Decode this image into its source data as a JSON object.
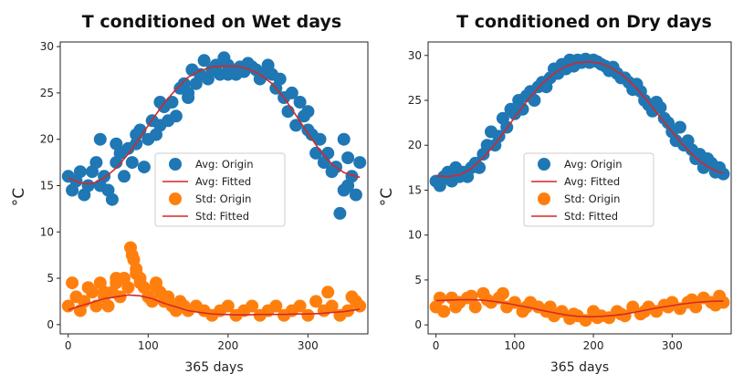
{
  "chart_data": [
    {
      "type": "scatter",
      "title": "T conditioned on Wet days",
      "xlabel": "365 days",
      "ylabel": "°C",
      "xlim": [
        -10,
        375
      ],
      "ylim": [
        -1,
        30.5
      ],
      "xticks": [
        0,
        100,
        200,
        300
      ],
      "yticks": [
        0,
        5,
        10,
        15,
        20,
        25,
        30
      ],
      "grid": false,
      "legend_position": "center",
      "series": [
        {
          "name": "Avg: Origin",
          "kind": "scatter",
          "color": "#1f77b4",
          "x": [
            0,
            5,
            10,
            15,
            20,
            25,
            30,
            35,
            40,
            45,
            50,
            55,
            60,
            65,
            70,
            75,
            80,
            85,
            90,
            95,
            100,
            105,
            110,
            115,
            120,
            125,
            130,
            135,
            140,
            145,
            150,
            155,
            160,
            165,
            170,
            175,
            180,
            185,
            190,
            195,
            200,
            205,
            210,
            215,
            220,
            225,
            230,
            235,
            240,
            245,
            250,
            255,
            260,
            265,
            270,
            275,
            280,
            285,
            290,
            295,
            300,
            305,
            310,
            315,
            320,
            325,
            330,
            335,
            340,
            345,
            350,
            355,
            360,
            365,
            40,
            60,
            85,
            115,
            150,
            200,
            250,
            300,
            345,
            350
          ],
          "y": [
            16,
            14.5,
            15.5,
            16.5,
            14,
            15,
            16.5,
            17.5,
            15,
            16,
            14.5,
            13.5,
            17.5,
            18.5,
            16,
            19,
            17.5,
            19.5,
            21,
            17,
            20,
            22,
            20.5,
            21.5,
            23.5,
            22,
            24,
            22.5,
            25.5,
            26,
            24.5,
            27.5,
            26,
            27,
            28.5,
            26.5,
            27.5,
            28,
            27,
            28.8,
            28,
            27.3,
            27,
            27.8,
            27.3,
            28.2,
            27.8,
            27.5,
            26.5,
            27,
            28,
            27,
            25.5,
            26.5,
            24.5,
            23,
            25,
            21.5,
            24,
            22.5,
            21,
            20.5,
            18.5,
            20,
            17.5,
            18.5,
            16.5,
            17,
            12,
            14.5,
            15,
            16,
            14,
            17.5,
            20,
            19.5,
            20.5,
            24,
            25,
            27,
            27.5,
            23,
            20,
            18
          ]
        },
        {
          "name": "Avg: Fitted",
          "kind": "line",
          "color": "#d62728",
          "x": [
            0,
            15,
            30,
            45,
            60,
            75,
            90,
            105,
            120,
            135,
            150,
            165,
            180,
            195,
            210,
            225,
            240,
            255,
            270,
            285,
            300,
            315,
            330,
            345,
            360,
            365
          ],
          "y": [
            15.8,
            15.3,
            15.2,
            15.8,
            16.9,
            18.4,
            20.2,
            22.1,
            23.9,
            25.4,
            26.7,
            27.4,
            27.8,
            27.9,
            27.9,
            27.6,
            27.0,
            26.0,
            24.5,
            22.6,
            20.6,
            18.8,
            17.3,
            16.4,
            16.0,
            15.9
          ]
        },
        {
          "name": "Std: Origin",
          "kind": "scatter",
          "color": "#ff7f0e",
          "x": [
            0,
            5,
            10,
            15,
            20,
            25,
            30,
            35,
            40,
            45,
            50,
            55,
            60,
            65,
            70,
            75,
            80,
            85,
            90,
            95,
            100,
            105,
            110,
            115,
            120,
            125,
            130,
            135,
            140,
            145,
            150,
            160,
            170,
            180,
            190,
            200,
            210,
            220,
            230,
            240,
            250,
            260,
            270,
            280,
            290,
            300,
            310,
            320,
            330,
            340,
            350,
            360,
            365,
            78,
            82,
            85,
            90,
            60,
            45,
            110,
            325,
            355
          ],
          "y": [
            2,
            4.5,
            3,
            1.5,
            2.5,
            4,
            3.5,
            2,
            4.5,
            3,
            2,
            3.5,
            4.5,
            3,
            5,
            4,
            7.5,
            6,
            5,
            4,
            3,
            2.5,
            4,
            3.5,
            2.5,
            3,
            2,
            1.5,
            2.5,
            2,
            1.5,
            2,
            1.5,
            1,
            1.5,
            2,
            1,
            1.5,
            2,
            1,
            1.5,
            2,
            1,
            1.5,
            2,
            1,
            2.5,
            1.5,
            2,
            1,
            1.5,
            2.5,
            2,
            8.3,
            7,
            5.5,
            4.5,
            5,
            3.5,
            4.5,
            3.5,
            3
          ]
        },
        {
          "name": "Std: Fitted",
          "kind": "line",
          "color": "#d62728",
          "x": [
            0,
            15,
            30,
            45,
            60,
            75,
            90,
            105,
            120,
            135,
            150,
            165,
            180,
            195,
            210,
            225,
            240,
            255,
            270,
            285,
            300,
            315,
            330,
            345,
            360,
            365
          ],
          "y": [
            1.6,
            2.0,
            2.4,
            2.8,
            3.0,
            3.2,
            3.1,
            2.8,
            2.3,
            1.9,
            1.5,
            1.3,
            1.15,
            1.1,
            1.05,
            1.05,
            1.1,
            1.1,
            1.1,
            1.15,
            1.15,
            1.2,
            1.3,
            1.4,
            1.6,
            1.65
          ]
        }
      ]
    },
    {
      "type": "scatter",
      "title": "T conditioned on Dry days",
      "xlabel": "365 days",
      "ylabel": "°C",
      "xlim": [
        -10,
        375
      ],
      "ylim": [
        -1,
        31.5
      ],
      "xticks": [
        0,
        100,
        200,
        300
      ],
      "yticks": [
        0,
        5,
        10,
        15,
        20,
        25,
        30
      ],
      "grid": false,
      "legend_position": "center",
      "series": [
        {
          "name": "Avg: Origin",
          "kind": "scatter",
          "color": "#1f77b4",
          "x": [
            0,
            5,
            10,
            15,
            20,
            25,
            30,
            35,
            40,
            45,
            50,
            55,
            60,
            65,
            70,
            75,
            80,
            85,
            90,
            95,
            100,
            105,
            110,
            115,
            120,
            125,
            130,
            135,
            140,
            145,
            150,
            155,
            160,
            165,
            170,
            175,
            180,
            185,
            190,
            195,
            200,
            205,
            210,
            215,
            220,
            225,
            230,
            235,
            240,
            245,
            250,
            255,
            260,
            265,
            270,
            275,
            280,
            285,
            290,
            295,
            300,
            305,
            310,
            315,
            320,
            325,
            330,
            335,
            340,
            345,
            350,
            355,
            360,
            365
          ],
          "y": [
            16,
            15.5,
            16.5,
            17,
            16,
            17.5,
            16.5,
            17,
            16.5,
            17.5,
            18,
            17.5,
            19,
            20,
            21.5,
            20,
            21,
            23,
            22,
            24,
            23.5,
            25,
            24,
            25.5,
            26,
            25,
            26.5,
            27,
            26.5,
            27.5,
            28.5,
            28,
            29,
            28.5,
            29.5,
            28.8,
            29.5,
            29.2,
            29.6,
            29.2,
            29.5,
            29.3,
            29,
            28.8,
            28.3,
            28.7,
            28,
            27.5,
            27.5,
            27,
            26.2,
            26.8,
            26,
            25,
            24.5,
            23.8,
            24.8,
            24.2,
            23,
            22.5,
            21.5,
            20.5,
            22,
            20,
            20.5,
            19.5,
            18.5,
            19,
            17.5,
            18.5,
            18,
            17,
            17.5,
            16.8
          ]
        },
        {
          "name": "Avg: Fitted",
          "kind": "line",
          "color": "#d62728",
          "x": [
            0,
            15,
            30,
            45,
            60,
            75,
            90,
            105,
            120,
            135,
            150,
            165,
            180,
            195,
            210,
            225,
            240,
            255,
            270,
            285,
            300,
            315,
            330,
            345,
            360,
            365
          ],
          "y": [
            16.6,
            16.5,
            16.7,
            17.4,
            18.6,
            20.1,
            21.9,
            23.7,
            25.4,
            26.9,
            28.0,
            28.8,
            29.2,
            29.3,
            29.1,
            28.5,
            27.6,
            26.3,
            24.8,
            23.1,
            21.5,
            19.9,
            18.6,
            17.6,
            17.0,
            16.9
          ]
        },
        {
          "name": "Std: Origin",
          "kind": "scatter",
          "color": "#ff7f0e",
          "x": [
            0,
            10,
            20,
            30,
            40,
            50,
            60,
            70,
            80,
            90,
            100,
            110,
            120,
            130,
            140,
            150,
            160,
            170,
            180,
            190,
            200,
            210,
            220,
            230,
            240,
            250,
            260,
            270,
            280,
            290,
            300,
            310,
            320,
            330,
            340,
            350,
            360,
            365,
            5,
            25,
            45,
            65,
            85,
            115,
            145,
            175,
            205,
            235,
            265,
            295,
            325,
            355
          ],
          "y": [
            2,
            1.5,
            3,
            2.5,
            3,
            2,
            3.5,
            2.5,
            3,
            2,
            2.5,
            1.5,
            2.5,
            2,
            1.5,
            1,
            1.5,
            0.7,
            1,
            0.5,
            1.5,
            1,
            0.8,
            1.5,
            1,
            2,
            1.2,
            2,
            1.5,
            2.2,
            2.5,
            1.8,
            2.5,
            2,
            3,
            2.5,
            3.2,
            2.5,
            3,
            2,
            3.2,
            2.8,
            3.5,
            2,
            2,
            1.2,
            0.8,
            1.2,
            1.5,
            2,
            2.8,
            2.2
          ]
        },
        {
          "name": "Std: Fitted",
          "kind": "line",
          "color": "#d62728",
          "x": [
            0,
            15,
            30,
            45,
            60,
            75,
            90,
            105,
            120,
            135,
            150,
            165,
            180,
            195,
            210,
            225,
            240,
            255,
            270,
            285,
            300,
            315,
            330,
            345,
            360,
            365
          ],
          "y": [
            2.7,
            2.75,
            2.8,
            2.8,
            2.75,
            2.6,
            2.4,
            2.15,
            1.9,
            1.6,
            1.35,
            1.1,
            0.95,
            0.9,
            0.95,
            1.05,
            1.2,
            1.45,
            1.7,
            1.95,
            2.15,
            2.35,
            2.5,
            2.6,
            2.65,
            2.65
          ]
        }
      ]
    }
  ]
}
